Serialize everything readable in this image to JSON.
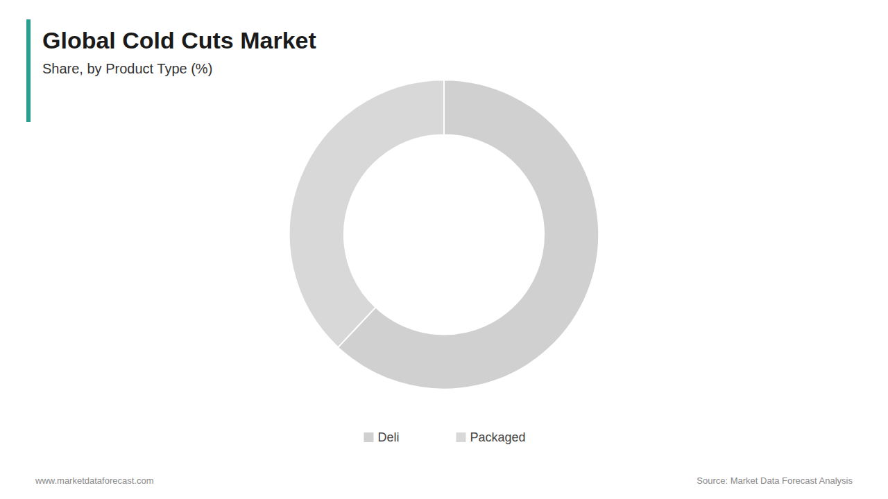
{
  "chart_data": {
    "type": "donut",
    "title": "Global Cold Cuts Market",
    "subtitle": "Share, by Product Type (%)",
    "categories": [
      "Deli",
      "Packaged"
    ],
    "values": [
      62,
      38
    ],
    "colors": [
      "#d0d0d0",
      "#d8d8d8"
    ],
    "legend": "bottom",
    "annotations": [
      "www.marketdataforecast.com",
      "Source: Market Data Forecast Analysis"
    ]
  }
}
